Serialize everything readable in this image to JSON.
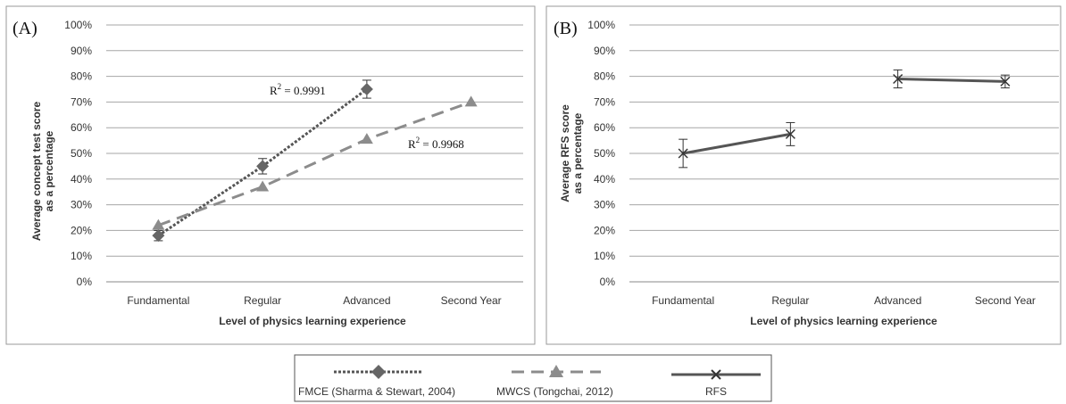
{
  "chart_data": [
    {
      "panel_label": "(A)",
      "type": "line",
      "categories": [
        "Fundamental",
        "Regular",
        "Advanced",
        "Second Year"
      ],
      "xlabel": "Level of physics learning experience",
      "ylabel": "Average concept test score as a percentage",
      "ylabel_lines": [
        "Average concept test score",
        "as a percentage"
      ],
      "ylim": [
        0,
        100
      ],
      "yticks": [
        "0%",
        "10%",
        "20%",
        "30%",
        "40%",
        "50%",
        "60%",
        "70%",
        "80%",
        "90%",
        "100%"
      ],
      "grid": true,
      "series": [
        {
          "name": "FMCE (Sharma & Stewart, 2004)",
          "values": [
            18,
            45,
            75,
            null
          ],
          "error": [
            2,
            3,
            3.5,
            null
          ],
          "color": "#555555",
          "marker": "diamond",
          "style": "dotted"
        },
        {
          "name": "MWCS (Tongchai, 2012)",
          "values": [
            22,
            37,
            55.5,
            70
          ],
          "color": "#8c8c8c",
          "marker": "triangle",
          "style": "dashed"
        }
      ],
      "annotations": [
        {
          "prefix": "R",
          "sup": "2",
          "value": " = 0.9991"
        },
        {
          "prefix": "R",
          "sup": "2",
          "value": " = 0.9968"
        }
      ]
    },
    {
      "panel_label": "(B)",
      "type": "line",
      "categories": [
        "Fundamental",
        "Regular",
        "Advanced",
        "Second Year"
      ],
      "xlabel": "Level of physics learning experience",
      "ylabel": "Average RFS score as a percentage",
      "ylabel_lines": [
        "Average RFS score",
        "as a percentage"
      ],
      "ylim": [
        0,
        100
      ],
      "yticks": [
        "0%",
        "10%",
        "20%",
        "30%",
        "40%",
        "50%",
        "60%",
        "70%",
        "80%",
        "90%",
        "100%"
      ],
      "grid": true,
      "series": [
        {
          "name": "RFS",
          "segments": [
            [
              0,
              1
            ],
            [
              2,
              3
            ]
          ],
          "values": [
            50,
            57.5,
            79,
            78
          ],
          "error": [
            5.5,
            4.5,
            3.5,
            2.5
          ],
          "color": "#555555",
          "marker": "x",
          "style": "solid"
        }
      ]
    }
  ],
  "legend": {
    "placement": "bottom",
    "items": [
      {
        "label": "FMCE (Sharma & Stewart, 2004)",
        "marker": "diamond",
        "style": "dotted",
        "color": "#555555"
      },
      {
        "label": "MWCS (Tongchai, 2012)",
        "marker": "triangle",
        "style": "dashed",
        "color": "#8c8c8c"
      },
      {
        "label": "RFS",
        "marker": "x",
        "style": "solid",
        "color": "#555555"
      }
    ]
  }
}
